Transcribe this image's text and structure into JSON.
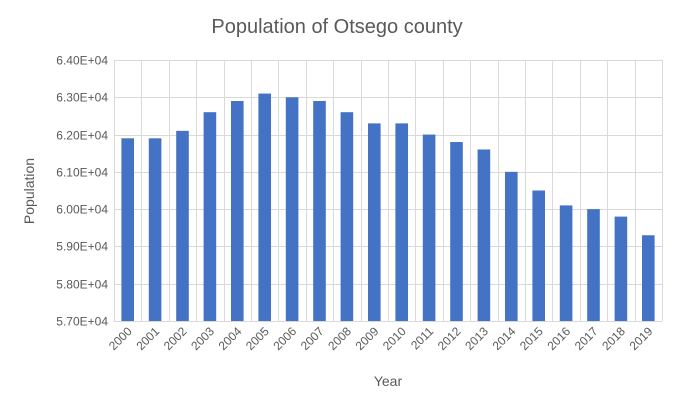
{
  "chart_data": {
    "type": "bar",
    "title": "Population of Otsego county",
    "xlabel": "Year",
    "ylabel": "Population",
    "categories": [
      "2000",
      "2001",
      "2002",
      "2003",
      "2004",
      "2005",
      "2006",
      "2007",
      "2008",
      "2009",
      "2010",
      "2011",
      "2012",
      "2013",
      "2014",
      "2015",
      "2016",
      "2017",
      "2018",
      "2019"
    ],
    "series": [
      {
        "values": [
          61900,
          61900,
          62100,
          62600,
          62900,
          63100,
          63000,
          62900,
          62600,
          62300,
          62300,
          62000,
          61800,
          61600,
          61000,
          60500,
          60100,
          60000,
          59800,
          59300
        ]
      }
    ],
    "ylim": [
      57000,
      64000
    ],
    "yticks": [
      57000,
      58000,
      59000,
      60000,
      61000,
      62000,
      63000,
      64000
    ],
    "ytick_labels": [
      "5.70E+04",
      "5.80E+04",
      "5.90E+04",
      "6.00E+04",
      "6.10E+04",
      "6.20E+04",
      "6.30E+04",
      "6.40E+04"
    ],
    "grid": true,
    "legend": "none",
    "bar_color": "#4472c4"
  }
}
